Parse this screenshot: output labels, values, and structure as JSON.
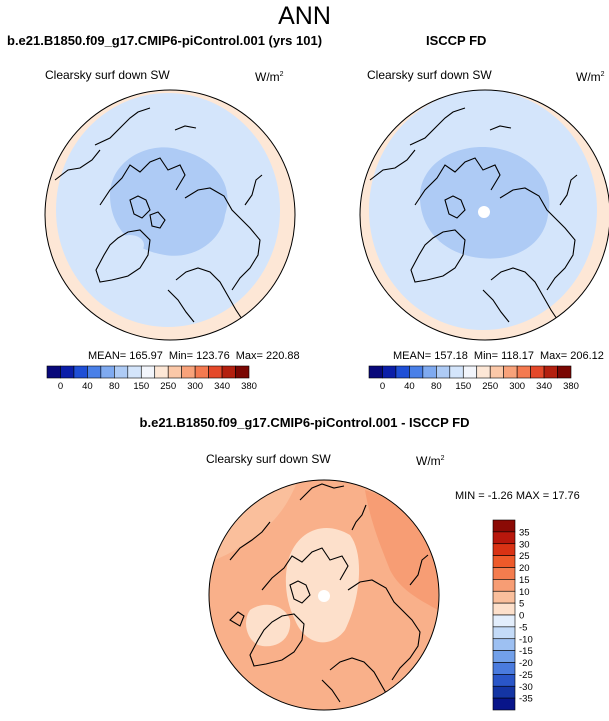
{
  "page": {
    "title": "ANN"
  },
  "panels": [
    {
      "title": "b.e21.B1850.f09_g17.CMIP6-piControl.001 (yrs 101)",
      "variable": "Clearsky surf down SW",
      "units_base": "W/m",
      "units_exp": "2",
      "stats": {
        "mean": "MEAN= 165.97",
        "min": "Min= 123.76",
        "max": "Max= 220.88"
      }
    },
    {
      "title": "ISCCP FD",
      "variable": "Clearsky surf down SW",
      "units_base": "W/m",
      "units_exp": "2",
      "stats": {
        "mean": "MEAN= 157.18",
        "min": "Min= 118.17",
        "max": "Max= 206.12"
      }
    }
  ],
  "difference": {
    "title": "b.e21.B1850.f09_g17.CMIP6-piControl.001 - ISCCP FD",
    "variable": "Clearsky surf down SW",
    "units_base": "W/m",
    "units_exp": "2",
    "minmax": "MIN =  -1.26 MAX =  17.76"
  },
  "chart_data": [
    {
      "type": "heatmap",
      "projection": "north-polar-stereographic",
      "title": "b.e21.B1850.f09_g17.CMIP6-piControl.001 (yrs 101)",
      "variable": "Clearsky surf down SW",
      "units": "W/m2",
      "mean": 165.97,
      "min": 123.76,
      "max": 220.88,
      "colorbar": {
        "orientation": "horizontal",
        "levels": [
          0,
          40,
          80,
          150,
          250,
          300,
          340,
          380
        ],
        "colors": [
          "#08087a",
          "#0b1ea8",
          "#1f4fd6",
          "#4a80e8",
          "#7faaf0",
          "#aecbf5",
          "#d4e5fb",
          "#f2f5fb",
          "#fde7d6",
          "#fbc8a8",
          "#f8a27a",
          "#f47a50",
          "#e4492a",
          "#b3200f",
          "#7a0703"
        ]
      }
    },
    {
      "type": "heatmap",
      "projection": "north-polar-stereographic",
      "title": "ISCCP FD",
      "variable": "Clearsky surf down SW",
      "units": "W/m2",
      "mean": 157.18,
      "min": 118.17,
      "max": 206.12,
      "colorbar": {
        "orientation": "horizontal",
        "levels": [
          0,
          40,
          80,
          150,
          250,
          300,
          340,
          380
        ],
        "colors": [
          "#08087a",
          "#0b1ea8",
          "#1f4fd6",
          "#4a80e8",
          "#7faaf0",
          "#aecbf5",
          "#d4e5fb",
          "#f2f5fb",
          "#fde7d6",
          "#fbc8a8",
          "#f8a27a",
          "#f47a50",
          "#e4492a",
          "#b3200f",
          "#7a0703"
        ]
      }
    },
    {
      "type": "heatmap",
      "projection": "north-polar-stereographic",
      "title": "b.e21.B1850.f09_g17.CMIP6-piControl.001 - ISCCP FD",
      "variable": "Clearsky surf down SW",
      "units": "W/m2",
      "min": -1.26,
      "max": 17.76,
      "colorbar": {
        "orientation": "vertical",
        "levels": [
          35,
          30,
          25,
          20,
          15,
          10,
          5,
          0,
          -5,
          -10,
          -15,
          -20,
          -25,
          -30,
          -35
        ],
        "colors": [
          "#8b0a05",
          "#b8170c",
          "#d93214",
          "#ee5a2a",
          "#f47c4e",
          "#f79d74",
          "#fabf9c",
          "#fde0cb",
          "#e3eefc",
          "#c4dbf8",
          "#9dc0f2",
          "#72a0e9",
          "#4a7bde",
          "#2a56c8",
          "#1435a4",
          "#08158a"
        ]
      }
    }
  ]
}
